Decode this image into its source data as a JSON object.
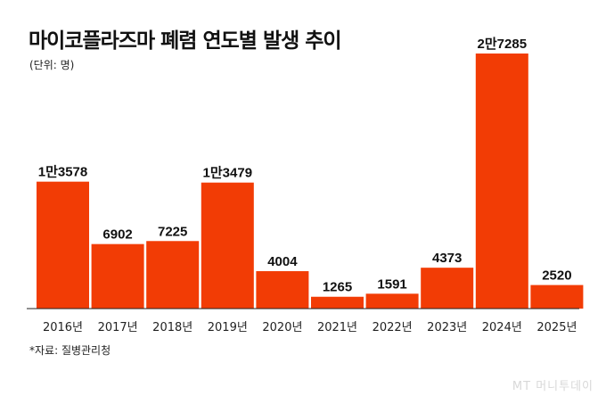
{
  "title": "마이코플라즈마 폐렴 연도별 발생 추이",
  "unit": "(단위: 명)",
  "source": "*자료: 질병관리청",
  "logo_text": "MT 머니투데이",
  "colors": {
    "bar": "#f23c05",
    "axis": "#222222",
    "text": "#111111"
  },
  "chart_data": {
    "type": "bar",
    "title": "마이코플라즈마 폐렴 연도별 발생 추이",
    "ylabel": "(단위: 명)",
    "xlabel": "",
    "categories": [
      "2016년",
      "2017년",
      "2018년",
      "2019년",
      "2020년",
      "2021년",
      "2022년",
      "2023년",
      "2024년",
      "2025년"
    ],
    "values": [
      13578,
      6902,
      7225,
      13479,
      4004,
      1265,
      1591,
      4373,
      27285,
      2520
    ],
    "data_labels": [
      "1만3578",
      "6902",
      "7225",
      "1만3479",
      "4004",
      "1265",
      "1591",
      "4373",
      "2만7285",
      "2520"
    ],
    "ylim": [
      0,
      27285
    ],
    "grid": false
  }
}
